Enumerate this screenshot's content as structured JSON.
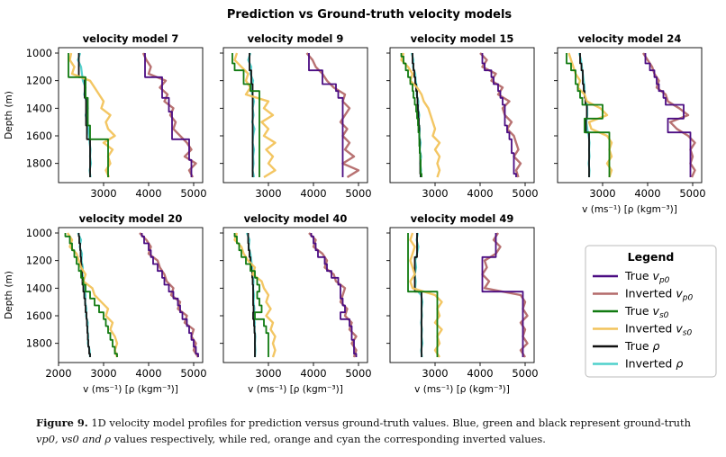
{
  "figure_title": "Prediction vs Ground-truth velocity models",
  "caption": {
    "label": "Figure 9.",
    "line1": "1D velocity model profiles for prediction versus ground-truth values. Blue, green and black represent ground-truth",
    "line2_math": "vp0, vs0 and ρ",
    "line2_rest": "values respectively, while red, orange and cyan the corresponding inverted values."
  },
  "colors": {
    "true_vp": "#4b0c82",
    "inv_vp": "#b46a6a",
    "true_vs": "#117a11",
    "inv_vs": "#f2c35b",
    "true_rho": "#111111",
    "inv_rho": "#4fd1cc"
  },
  "chart_data": {
    "type": "line",
    "ylabel": "Depth (m)",
    "xlabel": "v (ms⁻¹)   [ρ (kgm⁻³)]",
    "y_inverted": true,
    "ylim": [
      1000,
      1900
    ],
    "depths": [
      1000,
      1050,
      1100,
      1150,
      1200,
      1250,
      1300,
      1350,
      1400,
      1450,
      1500,
      1550,
      1600,
      1650,
      1700,
      1750,
      1800,
      1850,
      1900
    ],
    "legend": {
      "title": "Legend",
      "entries": [
        {
          "key": "true_vp",
          "label": "True",
          "sym": "v",
          "sub": "p0"
        },
        {
          "key": "inv_vp",
          "label": "Inverted",
          "sym": "v",
          "sub": "p0"
        },
        {
          "key": "true_vs",
          "label": "True",
          "sym": "v",
          "sub": "s0"
        },
        {
          "key": "inv_vs",
          "label": "Inverted",
          "sym": "v",
          "sub": "s0"
        },
        {
          "key": "true_rho",
          "label": "True",
          "sym": "ρ",
          "sub": ""
        },
        {
          "key": "inv_rho",
          "label": "Inverted",
          "sym": "ρ",
          "sub": ""
        }
      ]
    },
    "panels": [
      {
        "title": "velocity model 7",
        "xlim": [
          2000,
          5200
        ],
        "xticks": [
          3000,
          4000,
          5000
        ],
        "true_vp": [
          3920,
          3920,
          3920,
          3920,
          4300,
          4300,
          4300,
          4450,
          4450,
          4520,
          4520,
          4520,
          4520,
          4900,
          4900,
          4900,
          4950,
          4950,
          4950
        ],
        "inv_vp": [
          3880,
          3950,
          4050,
          4000,
          4380,
          4250,
          4420,
          4350,
          4550,
          4480,
          4600,
          4550,
          4700,
          4850,
          4950,
          4800,
          5050,
          4900,
          4980
        ],
        "true_vs": [
          2220,
          2220,
          2220,
          2220,
          2600,
          2600,
          2600,
          2650,
          2650,
          2650,
          2650,
          2700,
          2700,
          3100,
          3100,
          3100,
          3100,
          3100,
          3100
        ],
        "inv_vs": [
          2280,
          2250,
          2350,
          2300,
          2700,
          2800,
          2900,
          3000,
          2950,
          3150,
          3050,
          3100,
          3250,
          3000,
          3200,
          3100,
          3150,
          3050,
          3120
        ],
        "true_rho": [
          2450,
          2450,
          2450,
          2450,
          2580,
          2580,
          2580,
          2610,
          2610,
          2610,
          2610,
          2630,
          2630,
          2700,
          2700,
          2700,
          2700,
          2700,
          2700
        ],
        "inv_rho": [
          2480,
          2430,
          2500,
          2520,
          2540,
          2600,
          2570,
          2620,
          2650,
          2600,
          2640,
          2660,
          2680,
          2690,
          2710,
          2700,
          2720,
          2690,
          2710
        ]
      },
      {
        "title": "velocity model 9",
        "xlim": [
          2000,
          5200
        ],
        "xticks": [
          3000,
          4000,
          5000
        ],
        "true_vp": [
          3900,
          3900,
          3900,
          4200,
          4200,
          4500,
          4550,
          4650,
          4650,
          4650,
          4650,
          4650,
          4650,
          4650,
          4650,
          4650,
          4650,
          4650,
          4650
        ],
        "inv_vp": [
          3850,
          3980,
          4050,
          4200,
          4300,
          4450,
          4700,
          4650,
          4800,
          4700,
          4600,
          4750,
          4650,
          4800,
          4700,
          4900,
          4650,
          5000,
          4750
        ],
        "true_vs": [
          2200,
          2200,
          2250,
          2450,
          2450,
          2600,
          2800,
          2800,
          2800,
          2800,
          2800,
          2800,
          2800,
          2800,
          2800,
          2800,
          2800,
          2800,
          2800
        ],
        "inv_vs": [
          2300,
          2250,
          2400,
          2550,
          2500,
          2600,
          2500,
          3000,
          2900,
          3100,
          2850,
          3000,
          2900,
          3150,
          2950,
          3100,
          3000,
          3150,
          2900
        ],
        "true_rho": [
          2580,
          2580,
          2580,
          2620,
          2620,
          2650,
          2650,
          2650,
          2650,
          2650,
          2650,
          2650,
          2650,
          2650,
          2650,
          2650,
          2650,
          2650,
          2650
        ],
        "inv_rho": [
          2600,
          2550,
          2620,
          2600,
          2660,
          2630,
          2640,
          2680,
          2650,
          2670,
          2640,
          2690,
          2660,
          2650,
          2680,
          2660,
          2670,
          2650,
          2680
        ]
      },
      {
        "title": "velocity model 15",
        "xlim": [
          2000,
          5200
        ],
        "xticks": [
          3000,
          4000,
          5000
        ],
        "true_vp": [
          4050,
          4050,
          4100,
          4250,
          4300,
          4400,
          4450,
          4500,
          4550,
          4550,
          4550,
          4600,
          4650,
          4700,
          4700,
          4750,
          4750,
          4750,
          4800
        ],
        "inv_vp": [
          4000,
          4150,
          4050,
          4350,
          4250,
          4500,
          4400,
          4650,
          4500,
          4550,
          4700,
          4600,
          4750,
          4800,
          4850,
          4750,
          4900,
          4800,
          4850
        ],
        "true_vs": [
          2250,
          2300,
          2350,
          2400,
          2450,
          2500,
          2520,
          2550,
          2580,
          2600,
          2620,
          2630,
          2650,
          2650,
          2660,
          2670,
          2680,
          2680,
          2700
        ],
        "inv_vs": [
          2300,
          2250,
          2400,
          2500,
          2450,
          2600,
          2700,
          2750,
          2850,
          2900,
          2950,
          3000,
          2950,
          3100,
          3000,
          3100,
          3050,
          3100,
          3050
        ],
        "true_rho": [
          2500,
          2500,
          2520,
          2540,
          2560,
          2580,
          2600,
          2610,
          2620,
          2630,
          2640,
          2650,
          2650,
          2660,
          2660,
          2670,
          2670,
          2670,
          2680
        ],
        "inv_rho": [
          2480,
          2520,
          2510,
          2560,
          2570,
          2600,
          2590,
          2630,
          2620,
          2650,
          2630,
          2660,
          2650,
          2680,
          2660,
          2690,
          2670,
          2690,
          2680
        ]
      },
      {
        "title": "velocity model 24",
        "xlim": [
          2000,
          5200
        ],
        "xticks": [
          3000,
          4000,
          5000
        ],
        "true_vp": [
          3950,
          3950,
          4050,
          4150,
          4200,
          4250,
          4350,
          4400,
          4800,
          4800,
          4450,
          4450,
          4950,
          4950,
          4950,
          4950,
          4950,
          4950,
          4950
        ],
        "inv_vp": [
          3900,
          4000,
          4100,
          4150,
          4250,
          4200,
          4400,
          4450,
          4700,
          4900,
          4500,
          4650,
          4900,
          5050,
          4950,
          5000,
          4950,
          5050,
          4980
        ],
        "true_vs": [
          2200,
          2200,
          2300,
          2400,
          2400,
          2450,
          2500,
          2550,
          3000,
          3000,
          2600,
          2600,
          3150,
          3150,
          3150,
          3150,
          3150,
          3150,
          3150
        ],
        "inv_vs": [
          2250,
          2300,
          2350,
          2400,
          2500,
          2450,
          2600,
          2650,
          2950,
          3100,
          2700,
          2750,
          3100,
          3200,
          3150,
          3200,
          3100,
          3200,
          3150
        ],
        "true_rho": [
          2500,
          2500,
          2530,
          2560,
          2560,
          2580,
          2600,
          2620,
          2650,
          2650,
          2630,
          2630,
          2700,
          2700,
          2700,
          2700,
          2700,
          2700,
          2700
        ],
        "inv_rho": [
          2480,
          2520,
          2540,
          2560,
          2580,
          2600,
          2600,
          2640,
          2660,
          2660,
          2640,
          2660,
          2690,
          2710,
          2700,
          2710,
          2690,
          2710,
          2700
        ]
      },
      {
        "title": "velocity model 20",
        "xlim": [
          2000,
          5200
        ],
        "xticks": [
          2000,
          3000,
          4000,
          5000
        ],
        "true_vp": [
          3850,
          3900,
          4000,
          4050,
          4100,
          4200,
          4300,
          4350,
          4450,
          4550,
          4650,
          4700,
          4750,
          4850,
          4900,
          4950,
          5000,
          5050,
          5100
        ],
        "inv_vp": [
          3800,
          3950,
          4050,
          4000,
          4200,
          4250,
          4350,
          4400,
          4550,
          4500,
          4700,
          4650,
          4850,
          4800,
          5000,
          4950,
          5050,
          5000,
          5100
        ],
        "true_vs": [
          2150,
          2250,
          2300,
          2350,
          2400,
          2450,
          2500,
          2550,
          2600,
          2700,
          2800,
          2900,
          3000,
          3050,
          3100,
          3150,
          3200,
          3250,
          3300
        ],
        "inv_vs": [
          2200,
          2300,
          2250,
          2400,
          2450,
          2500,
          2600,
          2550,
          2750,
          2800,
          2950,
          3100,
          3050,
          3200,
          3150,
          3250,
          3300,
          3250,
          3300
        ],
        "true_rho": [
          2450,
          2460,
          2480,
          2490,
          2500,
          2510,
          2520,
          2530,
          2550,
          2570,
          2590,
          2600,
          2620,
          2630,
          2640,
          2650,
          2660,
          2680,
          2700
        ],
        "inv_rho": [
          2430,
          2500,
          2470,
          2520,
          2510,
          2540,
          2530,
          2560,
          2560,
          2600,
          2590,
          2620,
          2610,
          2650,
          2640,
          2660,
          2650,
          2690,
          2700
        ]
      },
      {
        "title": "velocity model 40",
        "xlim": [
          2000,
          5200
        ],
        "xticks": [
          3000,
          4000,
          5000
        ],
        "true_vp": [
          3950,
          4000,
          4050,
          4100,
          4250,
          4300,
          4400,
          4550,
          4600,
          4600,
          4650,
          4700,
          4600,
          4800,
          4850,
          4850,
          4900,
          4900,
          4950
        ],
        "inv_vp": [
          3900,
          4050,
          4000,
          4200,
          4300,
          4250,
          4450,
          4500,
          4700,
          4650,
          4600,
          4750,
          4700,
          4850,
          4800,
          4950,
          4850,
          4950,
          4900
        ],
        "true_vs": [
          2250,
          2300,
          2350,
          2400,
          2500,
          2600,
          2700,
          2750,
          2800,
          2750,
          2800,
          2850,
          2700,
          2900,
          2950,
          3000,
          3000,
          3000,
          3000
        ],
        "inv_vs": [
          2300,
          2250,
          2400,
          2450,
          2550,
          2700,
          2650,
          2850,
          2900,
          3000,
          2950,
          3050,
          2950,
          3100,
          3050,
          3150,
          3100,
          3150,
          3100
        ],
        "true_rho": [
          2550,
          2550,
          2560,
          2580,
          2600,
          2620,
          2640,
          2650,
          2660,
          2660,
          2660,
          2670,
          2660,
          2680,
          2690,
          2700,
          2700,
          2700,
          2700
        ],
        "inv_rho": [
          2520,
          2580,
          2560,
          2600,
          2620,
          2640,
          2650,
          2670,
          2660,
          2680,
          2670,
          2690,
          2670,
          2700,
          2690,
          2710,
          2700,
          2710,
          2700
        ]
      },
      {
        "title": "velocity model 49",
        "xlim": [
          2000,
          5200
        ],
        "xticks": [
          3000,
          4000,
          5000
        ],
        "true_vp": [
          4350,
          4350,
          4350,
          4350,
          4050,
          4050,
          4050,
          4050,
          4050,
          4950,
          4950,
          4950,
          4950,
          4950,
          4950,
          4950,
          4950,
          4950,
          4950
        ],
        "inv_vp": [
          4400,
          4300,
          4450,
          4350,
          4100,
          4150,
          4050,
          4200,
          4100,
          4900,
          5000,
          4950,
          5050,
          4900,
          5000,
          4950,
          5050,
          4900,
          5000
        ],
        "true_vs": [
          2400,
          2400,
          2400,
          2400,
          2400,
          2400,
          2400,
          2400,
          2400,
          3050,
          3050,
          3050,
          3050,
          3050,
          3050,
          3050,
          3050,
          3050,
          3050
        ],
        "inv_vs": [
          2500,
          2450,
          2550,
          2500,
          2450,
          2500,
          2550,
          2450,
          2500,
          3000,
          3150,
          3050,
          3100,
          3000,
          3150,
          3050,
          3100,
          3000,
          3100
        ],
        "true_rho": [
          2600,
          2600,
          2600,
          2600,
          2550,
          2550,
          2550,
          2550,
          2550,
          2700,
          2700,
          2700,
          2700,
          2700,
          2700,
          2700,
          2700,
          2700,
          2700
        ],
        "inv_rho": [
          2620,
          2590,
          2630,
          2600,
          2560,
          2580,
          2550,
          2570,
          2560,
          2690,
          2720,
          2700,
          2710,
          2690,
          2710,
          2700,
          2720,
          2690,
          2710
        ]
      }
    ]
  }
}
